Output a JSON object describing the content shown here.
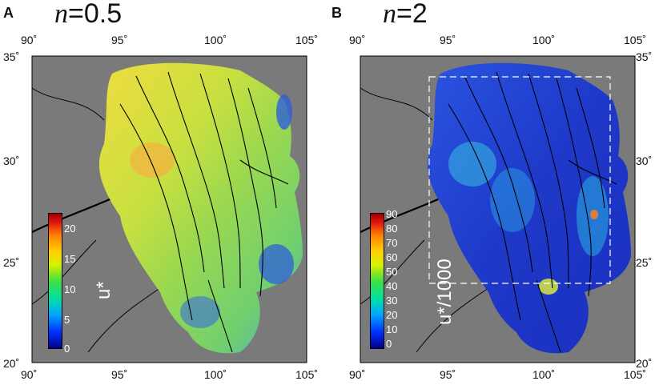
{
  "panels": [
    {
      "letter": "A",
      "title_n": "n",
      "title_eq": "=0.5",
      "colorbar": {
        "label": "u*",
        "ticks": [
          "20",
          "15",
          "10",
          "5",
          "0"
        ],
        "range": [
          0,
          22
        ]
      },
      "x_ticks_top": [
        "90˚",
        "95˚",
        "100˚",
        "105˚"
      ],
      "x_ticks_bottom": [
        "90˚",
        "95˚",
        "100˚",
        "105˚"
      ],
      "y_ticks": [
        "35˚",
        "30˚",
        "25˚",
        "20˚"
      ]
    },
    {
      "letter": "B",
      "title_n": "n",
      "title_eq": "=2",
      "colorbar": {
        "label": "u*/1000",
        "ticks": [
          "90",
          "80",
          "70",
          "60",
          "50",
          "40",
          "30",
          "20",
          "10",
          "0"
        ],
        "range": [
          0,
          95
        ]
      },
      "x_ticks_top": [
        "90˚",
        "95˚",
        "100˚",
        "105˚"
      ],
      "x_ticks_bottom": [
        "90˚",
        "95˚",
        "100˚",
        "105˚"
      ],
      "y_ticks": [
        "35˚",
        "30˚",
        "25˚",
        "20˚"
      ]
    }
  ],
  "colors": {
    "background_land": "#7a7a7a",
    "panel_a_field": "#e6d944",
    "panel_b_field": "#1f3fd0",
    "rivers": "#000000"
  }
}
